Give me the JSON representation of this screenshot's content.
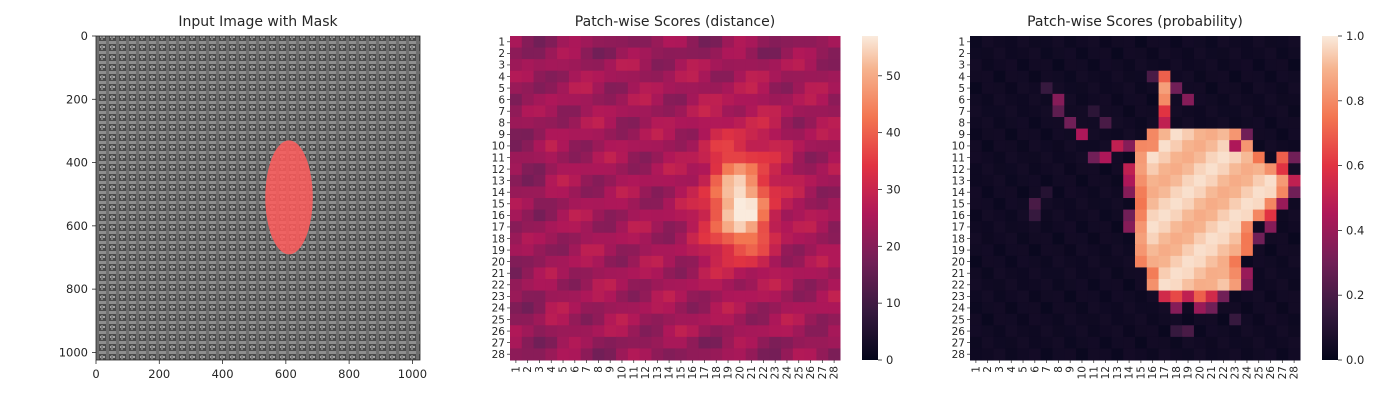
{
  "chart_data": [
    {
      "type": "image",
      "title": "Input Image with Mask",
      "x_ticks": [
        "0",
        "200",
        "400",
        "600",
        "800",
        "1000"
      ],
      "y_ticks": [
        "0",
        "200",
        "400",
        "600",
        "800",
        "1000"
      ],
      "xlim": [
        0,
        1024
      ],
      "ylim": [
        1024,
        0
      ],
      "content": "woven fabric texture with red anomaly mask",
      "mask": {
        "center_x": 610,
        "center_y": 510,
        "width": 150,
        "height": 360,
        "color": "#ff5c5c"
      }
    },
    {
      "type": "heatmap",
      "title": "Patch-wise Scores (distance)",
      "rows": 28,
      "cols": 28,
      "x_ticks": [
        "1",
        "2",
        "3",
        "4",
        "5",
        "6",
        "7",
        "8",
        "9",
        "10",
        "11",
        "12",
        "13",
        "14",
        "15",
        "16",
        "17",
        "18",
        "19",
        "20",
        "21",
        "22",
        "23",
        "24",
        "25",
        "26",
        "27",
        "28"
      ],
      "y_ticks": [
        "1",
        "2",
        "3",
        "4",
        "5",
        "6",
        "7",
        "8",
        "9",
        "10",
        "11",
        "12",
        "13",
        "14",
        "15",
        "16",
        "17",
        "18",
        "19",
        "20",
        "21",
        "22",
        "23",
        "24",
        "25",
        "26",
        "27",
        "28"
      ],
      "colorbar_ticks": [
        "0",
        "10",
        "20",
        "30",
        "40",
        "50"
      ],
      "vmin": 0,
      "vmax": 57,
      "baseline": 24,
      "hotspots": [
        {
          "row": 15.5,
          "col": 20,
          "sigma_row": 2.8,
          "sigma_col": 1.8,
          "amp": 32
        },
        {
          "row": 11,
          "col": 20,
          "sigma_row": 3.5,
          "sigma_col": 2.5,
          "amp": 6
        }
      ]
    },
    {
      "type": "heatmap",
      "title": "Patch-wise Scores (probability)",
      "rows": 28,
      "cols": 28,
      "x_ticks": [
        "1",
        "2",
        "3",
        "4",
        "5",
        "6",
        "7",
        "8",
        "9",
        "10",
        "11",
        "12",
        "13",
        "14",
        "15",
        "16",
        "17",
        "18",
        "19",
        "20",
        "21",
        "22",
        "23",
        "24",
        "25",
        "26",
        "27",
        "28"
      ],
      "y_ticks": [
        "1",
        "2",
        "3",
        "4",
        "5",
        "6",
        "7",
        "8",
        "9",
        "10",
        "11",
        "12",
        "13",
        "14",
        "15",
        "16",
        "17",
        "18",
        "19",
        "20",
        "21",
        "22",
        "23",
        "24",
        "25",
        "26",
        "27",
        "28"
      ],
      "colorbar_ticks": [
        "0.0",
        "0.2",
        "0.4",
        "0.6",
        "0.8",
        "1.0"
      ],
      "vmin": 0,
      "vmax": 1,
      "core_bounds": [
        [
          9,
          16,
          23
        ],
        [
          10,
          15,
          24
        ],
        [
          11,
          15,
          25
        ],
        [
          12,
          15,
          26
        ],
        [
          13,
          15,
          27
        ],
        [
          14,
          15,
          27
        ],
        [
          15,
          15,
          26
        ],
        [
          16,
          15,
          25
        ],
        [
          17,
          15,
          24
        ],
        [
          18,
          15,
          24
        ],
        [
          19,
          15,
          24
        ],
        [
          20,
          15,
          23
        ],
        [
          21,
          16,
          23
        ],
        [
          22,
          16,
          23
        ]
      ],
      "extra_cells": [
        [
          4,
          17,
          0.7
        ],
        [
          5,
          17,
          0.85
        ],
        [
          6,
          17,
          0.8
        ],
        [
          7,
          17,
          0.6
        ],
        [
          8,
          17,
          0.5
        ],
        [
          5,
          18,
          0.3
        ],
        [
          6,
          19,
          0.35
        ],
        [
          9,
          17,
          0.9
        ],
        [
          10,
          16,
          0.8
        ],
        [
          11,
          12,
          0.45
        ],
        [
          10,
          13,
          0.5
        ],
        [
          9,
          10,
          0.45
        ],
        [
          8,
          9,
          0.3
        ],
        [
          11,
          11,
          0.3
        ],
        [
          10,
          14,
          0.35
        ],
        [
          6,
          8,
          0.35
        ],
        [
          7,
          8,
          0.25
        ],
        [
          12,
          14,
          0.5
        ],
        [
          13,
          14,
          0.45
        ],
        [
          14,
          14,
          0.35
        ],
        [
          16,
          14,
          0.3
        ],
        [
          17,
          14,
          0.35
        ],
        [
          10,
          23,
          0.45
        ],
        [
          9,
          24,
          0.3
        ],
        [
          11,
          27,
          0.7
        ],
        [
          12,
          27,
          0.6
        ],
        [
          13,
          28,
          0.5
        ],
        [
          11,
          28,
          0.3
        ],
        [
          14,
          28,
          0.3
        ],
        [
          16,
          26,
          0.6
        ],
        [
          15,
          27,
          0.4
        ],
        [
          17,
          26,
          0.35
        ],
        [
          18,
          25,
          0.3
        ],
        [
          21,
          24,
          0.4
        ],
        [
          22,
          24,
          0.35
        ],
        [
          23,
          17,
          0.55
        ],
        [
          23,
          18,
          0.65
        ],
        [
          23,
          19,
          0.5
        ],
        [
          23,
          20,
          0.7
        ],
        [
          23,
          21,
          0.55
        ],
        [
          23,
          22,
          0.3
        ],
        [
          24,
          18,
          0.35
        ],
        [
          24,
          20,
          0.4
        ],
        [
          24,
          21,
          0.3
        ],
        [
          26,
          18,
          0.15
        ],
        [
          26,
          19,
          0.2
        ],
        [
          25,
          23,
          0.15
        ],
        [
          4,
          16,
          0.2
        ],
        [
          5,
          7,
          0.15
        ],
        [
          15,
          6,
          0.2
        ],
        [
          16,
          6,
          0.15
        ],
        [
          14,
          7,
          0.1
        ],
        [
          7,
          11,
          0.12
        ],
        [
          8,
          12,
          0.2
        ]
      ]
    }
  ]
}
